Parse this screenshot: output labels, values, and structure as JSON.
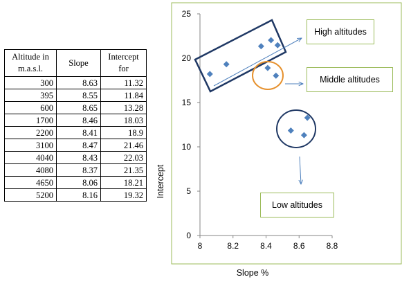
{
  "table": {
    "headers": [
      "Altitude in m.a.s.l.",
      "Slope",
      "Intercept for"
    ],
    "rows": [
      [
        "300",
        "8.63",
        "11.32"
      ],
      [
        "395",
        "8.55",
        "11.84"
      ],
      [
        "600",
        "8.65",
        "13.28"
      ],
      [
        "1700",
        "8.46",
        "18.03"
      ],
      [
        "2200",
        "8.41",
        "18.9"
      ],
      [
        "3100",
        "8.47",
        "21.46"
      ],
      [
        "4040",
        "8.43",
        "22.03"
      ],
      [
        "4080",
        "8.37",
        "21.35"
      ],
      [
        "4650",
        "8.06",
        "18.21"
      ],
      [
        "5200",
        "8.16",
        "19.32"
      ]
    ]
  },
  "chart_data": {
    "type": "scatter",
    "title": "",
    "xlabel": "Slope %",
    "ylabel": "Intercept",
    "xlim": [
      8,
      8.8
    ],
    "ylim": [
      0,
      25
    ],
    "x_ticks": [
      "8",
      "8.2",
      "8.4",
      "8.6",
      "8.8"
    ],
    "y_ticks": [
      "0",
      "5",
      "10",
      "15",
      "20",
      "25"
    ],
    "grid": false,
    "legend": "none",
    "series": [
      {
        "points": [
          {
            "x": 8.63,
            "y": 11.32
          },
          {
            "x": 8.55,
            "y": 11.84
          },
          {
            "x": 8.65,
            "y": 13.28
          },
          {
            "x": 8.46,
            "y": 18.03
          },
          {
            "x": 8.41,
            "y": 18.9
          },
          {
            "x": 8.47,
            "y": 21.46
          },
          {
            "x": 8.43,
            "y": 22.03
          },
          {
            "x": 8.37,
            "y": 21.35
          },
          {
            "x": 8.06,
            "y": 18.21
          },
          {
            "x": 8.16,
            "y": 19.32
          }
        ],
        "color": "#4f81bd"
      }
    ],
    "annotations": {
      "high": "High altitudes",
      "middle": "Middle altitudes",
      "low": "Low altitudes"
    },
    "colors": {
      "high_box": "#1f3864",
      "middle_circle": "#e6912e",
      "low_circle": "#1f3864",
      "arrow": "#4f81bd",
      "callout_border": "#9bbb59",
      "frame_border": "#9bbb59"
    }
  }
}
